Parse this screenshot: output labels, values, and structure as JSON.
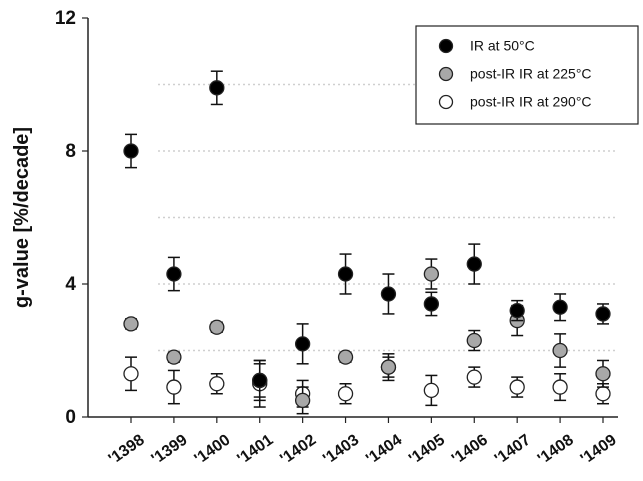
{
  "chart_data": {
    "type": "scatter",
    "title": "",
    "xlabel": "",
    "ylabel": "g-value [%/decade]",
    "categories": [
      "'1398",
      "'1399",
      "'1400",
      "'1401",
      "'1402",
      "'1403",
      "'1404",
      "'1405",
      "'1406",
      "'1407",
      "'1408",
      "'1409"
    ],
    "ylim": [
      0,
      12
    ],
    "yticks": [
      0,
      4,
      8,
      12
    ],
    "grid_y": [
      2,
      4,
      6,
      8,
      10
    ],
    "grid": true,
    "legend_position": "top-right",
    "series": [
      {
        "name": "IR at 50°C",
        "color": "#000000",
        "marker": "filled-black-circle",
        "values": [
          8.0,
          4.3,
          9.9,
          1.1,
          2.2,
          4.3,
          3.7,
          3.4,
          4.6,
          3.2,
          3.3,
          3.1
        ],
        "errors": [
          0.5,
          0.5,
          0.5,
          0.6,
          0.6,
          0.6,
          0.6,
          0.35,
          0.6,
          0.3,
          0.4,
          0.3
        ]
      },
      {
        "name": "post-IR IR at 225°C",
        "color": "#a8a8a8",
        "marker": "filled-grey-circle",
        "values": [
          2.8,
          1.8,
          2.7,
          1.1,
          0.5,
          1.8,
          1.5,
          4.3,
          2.3,
          2.9,
          2.0,
          1.3
        ],
        "errors": [
          0.15,
          0.15,
          0.15,
          0.5,
          0.4,
          0.15,
          0.3,
          0.45,
          0.3,
          0.45,
          0.5,
          0.4
        ]
      },
      {
        "name": "post-IR IR at 290°C",
        "color": "#ffffff",
        "marker": "open-circle",
        "values": [
          1.3,
          0.9,
          1.0,
          1.0,
          0.7,
          0.7,
          1.5,
          0.8,
          1.2,
          0.9,
          0.9,
          0.7
        ],
        "errors": [
          0.5,
          0.5,
          0.3,
          0.7,
          0.4,
          0.3,
          0.4,
          0.45,
          0.3,
          0.3,
          0.4,
          0.3
        ]
      }
    ]
  }
}
